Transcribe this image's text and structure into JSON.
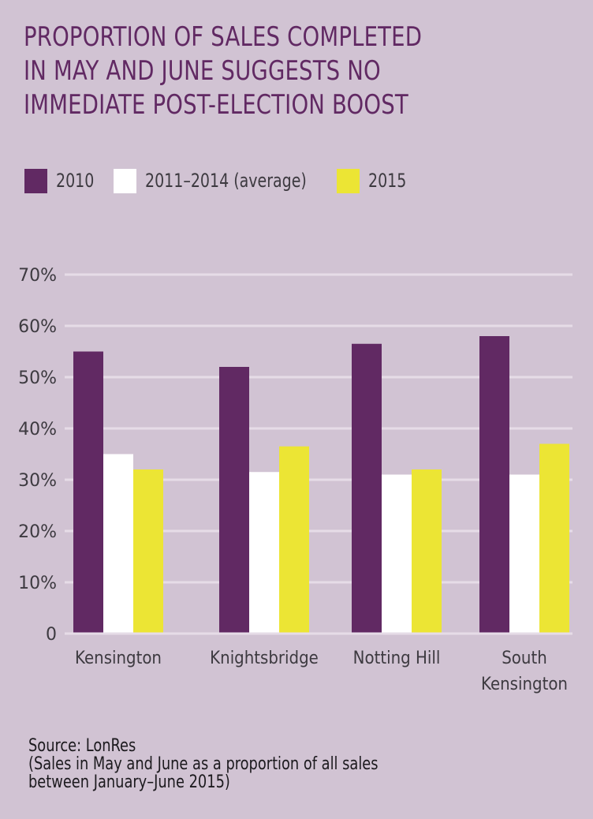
{
  "title": "PROPORTION OF SALES COMPLETED\nIN MAY AND JUNE SUGGESTS NO\nIMMEDIATE POST-ELECTION BOOST",
  "colors": {
    "background": "#d1c3d3",
    "title": "#612963",
    "series_2010": "#612963",
    "series_avg": "#ffffff",
    "series_2015": "#ece534",
    "gridline": "#e6dce7"
  },
  "source": {
    "line1": "Source: LonRes",
    "line2": "(Sales in May and June as a proportion of all sales",
    "line3": "between January–June 2015)"
  },
  "chart_data": {
    "type": "bar",
    "title": "PROPORTION OF SALES COMPLETED IN MAY AND JUNE SUGGESTS NO IMMEDIATE POST-ELECTION BOOST",
    "categories": [
      [
        "Kensington"
      ],
      [
        "Knightsbridge"
      ],
      [
        "Notting Hill"
      ],
      [
        "South",
        "Kensington"
      ]
    ],
    "series": [
      {
        "name": "2010",
        "color": "#612963",
        "values": [
          55,
          52,
          56.5,
          58
        ]
      },
      {
        "name": "2011–2014 (average)",
        "color": "#ffffff",
        "values": [
          35,
          31.5,
          31,
          31
        ]
      },
      {
        "name": "2015",
        "color": "#ece534",
        "values": [
          32,
          36.5,
          32,
          37
        ]
      }
    ],
    "xlabel": "",
    "ylabel": "",
    "ylim": [
      0,
      70
    ],
    "yticks": [
      0,
      10,
      20,
      30,
      40,
      50,
      60,
      70
    ],
    "ytick_labels": [
      "0",
      "10%",
      "20%",
      "30%",
      "40%",
      "50%",
      "60%",
      "70%"
    ],
    "grid": true,
    "legend_position": "top-left",
    "unit": "%"
  }
}
